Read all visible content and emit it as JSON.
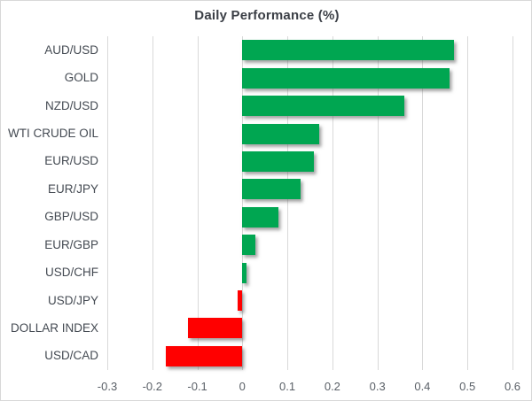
{
  "chart_data": {
    "type": "bar",
    "orientation": "horizontal",
    "title": "Daily Performance (%)",
    "categories": [
      "AUD/USD",
      "GOLD",
      "NZD/USD",
      "WTI CRUDE OIL",
      "EUR/USD",
      "EUR/JPY",
      "GBP/USD",
      "EUR/GBP",
      "USD/CHF",
      "USD/JPY",
      "DOLLAR INDEX",
      "USD/CAD"
    ],
    "values": [
      0.47,
      0.46,
      0.36,
      0.17,
      0.16,
      0.13,
      0.08,
      0.03,
      0.01,
      -0.01,
      -0.12,
      -0.17
    ],
    "xlim": [
      -0.3,
      0.6
    ],
    "x_tick_labels": [
      "-0.3",
      "-0.2",
      "-0.1",
      "0",
      "0.1",
      "0.2",
      "0.3",
      "0.4",
      "0.5",
      "0.6"
    ],
    "x_tick_values": [
      -0.3,
      -0.2,
      -0.1,
      0,
      0.1,
      0.2,
      0.3,
      0.4,
      0.5,
      0.6
    ],
    "grid": "vertical-on",
    "legend": "none",
    "positive_color": "#00a651",
    "negative_color": "#ff0000",
    "gridline_color": "#d9d9d9",
    "title_color": "#3b3f46"
  }
}
